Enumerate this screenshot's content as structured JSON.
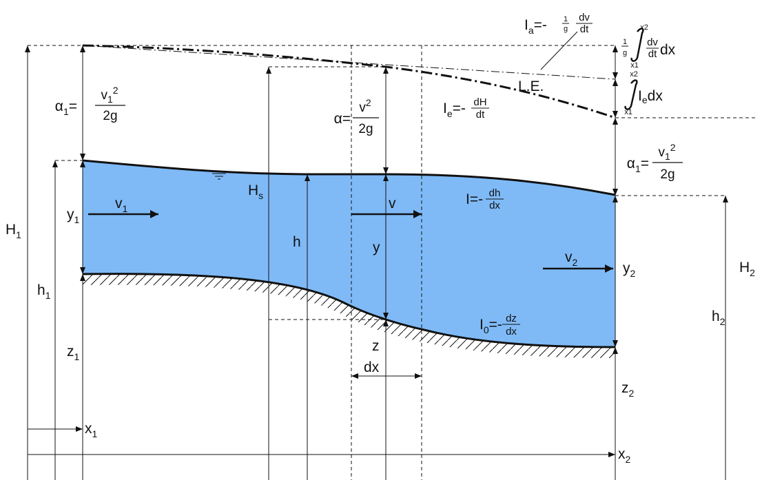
{
  "colors": {
    "water": "#7fbaf7",
    "line": "#111111",
    "background": "#ffffff"
  },
  "labels": {
    "H1": {
      "main": "H",
      "sub": "1"
    },
    "H2": {
      "main": "H",
      "sub": "2"
    },
    "h1": {
      "main": "h",
      "sub": "1"
    },
    "h2": {
      "main": "h",
      "sub": "2"
    },
    "y1": {
      "main": "y",
      "sub": "1"
    },
    "y2": {
      "main": "y",
      "sub": "2"
    },
    "z1": {
      "main": "z",
      "sub": "1"
    },
    "z2": {
      "main": "z",
      "sub": "2"
    },
    "x1": {
      "main": "x",
      "sub": "1"
    },
    "x2": {
      "main": "x",
      "sub": "2"
    },
    "v1": {
      "main": "v",
      "sub": "1"
    },
    "v2": {
      "main": "v",
      "sub": "2"
    },
    "Hs": {
      "main": "H",
      "sub": "s"
    },
    "v": "v",
    "h": "h",
    "y": "y",
    "z": "z",
    "dx": "dx",
    "LE": "L.E."
  },
  "formulas": {
    "alpha1_left": {
      "lhs": "α",
      "lhs_sub": "1",
      "eq": "=",
      "num": "v",
      "num_sub": "1",
      "num_sup": "2",
      "den": "2g"
    },
    "alpha_mid": {
      "lhs": "α=",
      "num": "v",
      "num_sup": "2",
      "den": "2g"
    },
    "alpha1_right": {
      "lhs": "α",
      "lhs_sub": "1",
      "eq": "=",
      "num": "v",
      "num_sub": "1",
      "num_sup": "2",
      "den": "2g"
    },
    "Ia": {
      "lhs": "I",
      "lhs_sub": "a",
      "eq": "=-",
      "coef_num": "1",
      "coef_den": "g",
      "num": "dv",
      "den": "dt"
    },
    "Ie": {
      "lhs": "I",
      "lhs_sub": "e",
      "eq": "=-",
      "num": "dH",
      "den": "dt"
    },
    "I": {
      "lhs": "I",
      "eq": "=-",
      "num": "dh",
      "den": "dx"
    },
    "I0": {
      "lhs": "I",
      "lhs_sub": "0",
      "eq": "=-",
      "num": "dz",
      "den": "dx"
    },
    "int1": {
      "coef_num": "1",
      "coef_den": "g",
      "upper": "x2",
      "lower": "x1",
      "num": "dv",
      "den": "dt",
      "tail": "dx"
    },
    "int2": {
      "upper": "x2",
      "lower": "x1",
      "body": "I",
      "body_sub": "e",
      "tail": "dx"
    }
  }
}
